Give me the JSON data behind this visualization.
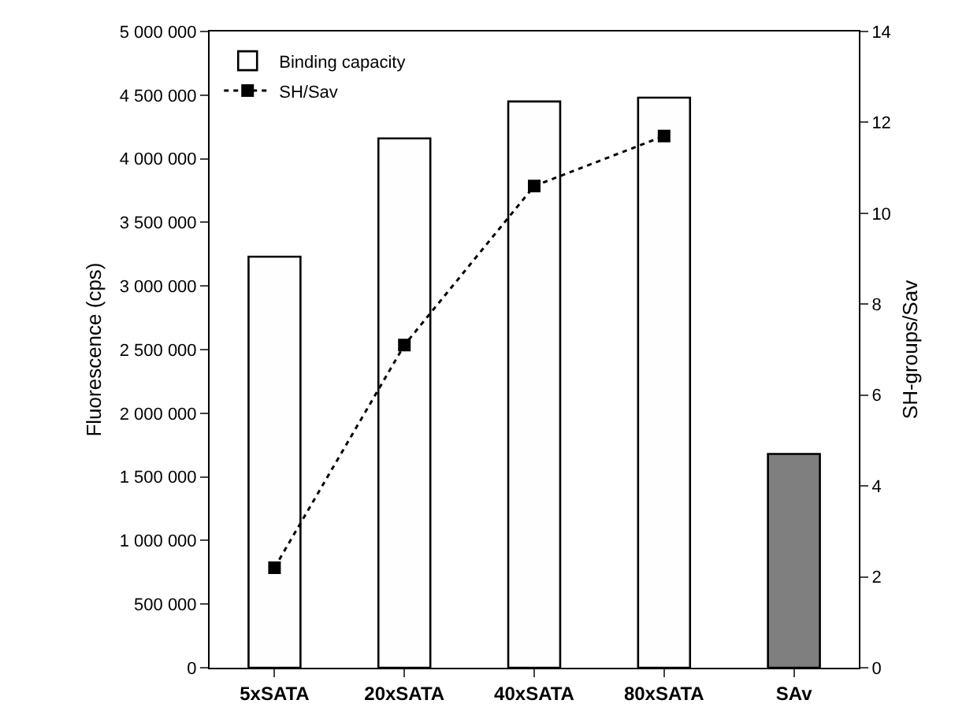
{
  "chart_data": {
    "type": "bar",
    "ylabel": "Fluorescence (cps)",
    "y2label": "SH-groups/Sav",
    "categories": [
      "5xSATA",
      "20xSATA",
      "40xSATA",
      "80xSATA",
      "SAv"
    ],
    "series": [
      {
        "name": "Binding capacity",
        "colors": [
          "#fefefe",
          "#fefefe",
          "#fefefe",
          "#fefefe",
          "#7f7f7f"
        ],
        "values": [
          3230000,
          4160000,
          4450000,
          4480000,
          1680000
        ]
      },
      {
        "name": "SH/Sav",
        "type": "line",
        "axis": "y2",
        "color": "#000000",
        "marker": "square",
        "line_style": "dotted",
        "values": [
          2.2,
          7.1,
          10.6,
          11.7,
          null
        ]
      }
    ],
    "ylim": [
      0,
      5000000
    ],
    "yticks": [
      0,
      {
        "value": 500000,
        "label": "500 000"
      },
      {
        "value": 1000000,
        "label": "1 000 000"
      },
      {
        "value": 1500000,
        "label": "1 500 000"
      },
      {
        "value": 2000000,
        "label": "2 000 000"
      },
      {
        "value": 2500000,
        "label": "2 500 000"
      },
      {
        "value": 3000000,
        "label": "3 000 000"
      },
      {
        "value": 3500000,
        "label": "3 500 000"
      },
      {
        "value": 4000000,
        "label": "4 000 000"
      },
      {
        "value": 4500000,
        "label": "4 500 000"
      },
      {
        "value": 5000000,
        "label": "5 000 000"
      }
    ],
    "y2lim": [
      0,
      14
    ],
    "y2ticks": [
      0,
      2,
      4,
      6,
      8,
      10,
      12,
      14
    ],
    "grid": false,
    "legend": "top left"
  }
}
